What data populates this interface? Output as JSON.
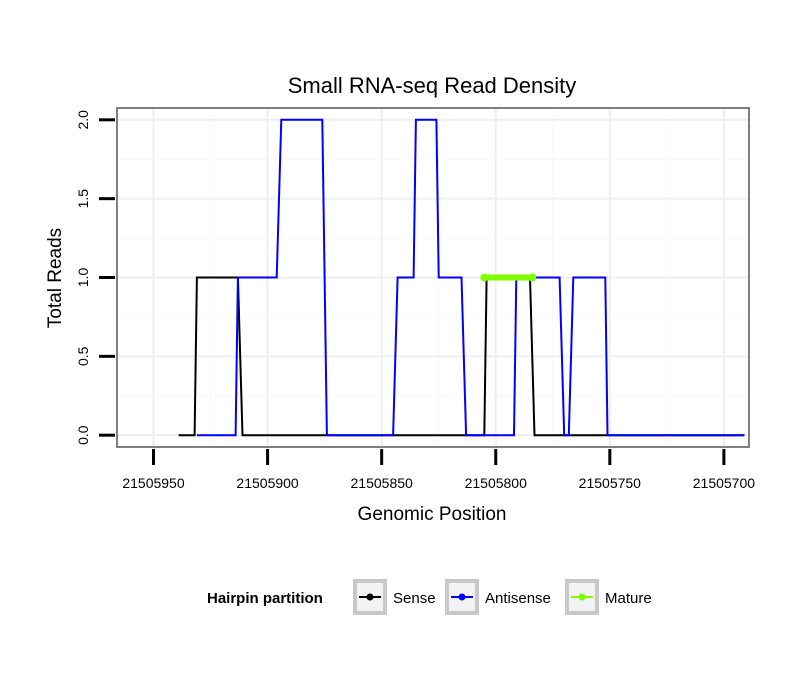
{
  "chart_data": {
    "type": "line",
    "title": "Small RNA-seq Read Density",
    "xlabel": "Genomic Position",
    "ylabel": "Total Reads",
    "x_reversed": true,
    "xlim": [
      21505966,
      21505689
    ],
    "ylim": [
      -0.075,
      2.075
    ],
    "x_ticks": [
      21505950,
      21505900,
      21505850,
      21505800,
      21505750,
      21505700
    ],
    "x_tick_labels": [
      "21505950",
      "21505900",
      "21505850",
      "21505800",
      "21505750",
      "21505700"
    ],
    "y_ticks": [
      0.0,
      0.5,
      1.0,
      1.5,
      2.0
    ],
    "y_tick_labels": [
      "0.0",
      "0.5",
      "1.0",
      "1.5",
      "2.0"
    ],
    "grid": true,
    "legend": {
      "title": "Hairpin partition",
      "position": "bottom",
      "entries": [
        {
          "label": "Sense",
          "color": "#000000"
        },
        {
          "label": "Antisense",
          "color": "#0000ff"
        },
        {
          "label": "Mature",
          "color": "#7fff00"
        }
      ]
    },
    "series": [
      {
        "name": "Sense",
        "color": "#000000",
        "x": [
          21505939,
          21505932,
          21505931,
          21505913,
          21505911,
          21505810,
          21505805,
          21505804,
          21505785,
          21505783,
          21505691
        ],
        "y": [
          0,
          0,
          1,
          1,
          0,
          0,
          0,
          1,
          1,
          0,
          0
        ]
      },
      {
        "name": "Antisense",
        "color": "#0000ff",
        "x": [
          21505931,
          21505914,
          21505913,
          21505896,
          21505894,
          21505876,
          21505874,
          21505845,
          21505843,
          21505836,
          21505835,
          21505826,
          21505825,
          21505815,
          21505813,
          21505805,
          21505803,
          21505792,
          21505791,
          21505772,
          21505770,
          21505768,
          21505766,
          21505752,
          21505751,
          21505691
        ],
        "y": [
          0,
          0,
          1,
          1,
          2,
          2,
          0,
          0,
          1,
          1,
          2,
          2,
          1,
          1,
          0,
          0,
          0,
          0,
          1,
          1,
          0,
          0,
          1,
          1,
          0,
          0
        ]
      },
      {
        "name": "Mature",
        "color": "#7fff00",
        "x": [
          21505805,
          21505784
        ],
        "y": [
          1,
          1
        ]
      }
    ]
  }
}
